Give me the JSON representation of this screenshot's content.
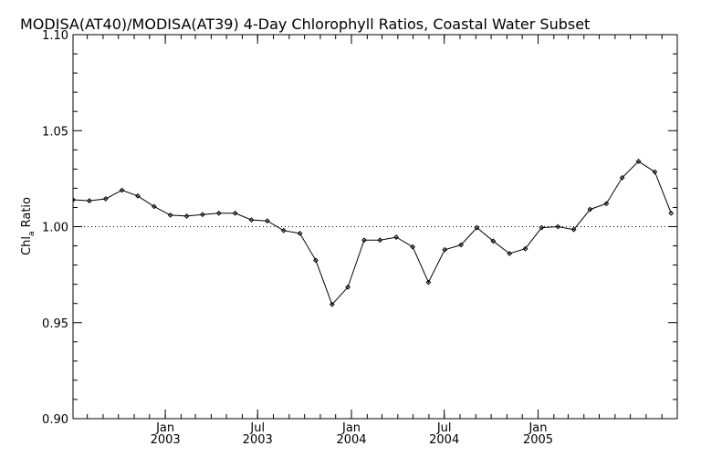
{
  "chart_data": {
    "type": "line",
    "title": "MODISA(AT40)/MODISA(AT39) 4-Day Chlorophyll Ratios, Coastal Water Subset",
    "ylabel": "Chl",
    "ylabel_subscript": "a",
    "ylabel_suffix": " Ratio",
    "xlabel": "",
    "ylim": [
      0.9,
      1.1
    ],
    "xlim": [
      "2002-07-04",
      "2005-10-01"
    ],
    "reference_line": {
      "y": 1.0,
      "style": "dotted"
    },
    "yticks": [
      {
        "value": 0.9,
        "label": "0.90"
      },
      {
        "value": 0.95,
        "label": "0.95"
      },
      {
        "value": 1.0,
        "label": "1.00"
      },
      {
        "value": 1.05,
        "label": "1.05"
      },
      {
        "value": 1.1,
        "label": "1.10"
      }
    ],
    "xticks": [
      {
        "date": "2003-01-01",
        "month": "Jan",
        "year": "2003"
      },
      {
        "date": "2003-07-01",
        "month": "Jul",
        "year": "2003"
      },
      {
        "date": "2004-01-01",
        "month": "Jan",
        "year": "2004"
      },
      {
        "date": "2004-07-01",
        "month": "Jul",
        "year": "2004"
      },
      {
        "date": "2005-01-01",
        "month": "Jan",
        "year": "2005"
      }
    ],
    "series": [
      {
        "x": [
          "2002-07-04",
          "2002-08-05",
          "2002-09-06",
          "2002-10-08",
          "2002-11-08",
          "2002-12-10",
          "2003-01-11",
          "2003-02-12",
          "2003-03-15",
          "2003-04-16",
          "2003-05-18",
          "2003-06-19",
          "2003-07-20",
          "2003-08-21",
          "2003-09-22",
          "2003-10-23",
          "2003-11-24",
          "2003-12-25",
          "2004-01-26",
          "2004-02-26",
          "2004-03-29",
          "2004-04-30",
          "2004-05-31",
          "2004-07-02",
          "2004-08-03",
          "2004-09-03",
          "2004-10-05",
          "2004-11-06",
          "2004-12-07",
          "2005-01-08",
          "2005-02-09",
          "2005-03-12",
          "2005-04-13",
          "2005-05-15",
          "2005-06-15",
          "2005-07-17",
          "2005-08-18",
          "2005-09-19"
        ],
        "values": [
          1.014,
          1.0135,
          1.0145,
          1.019,
          1.016,
          1.0105,
          1.006,
          1.0055,
          1.0063,
          1.007,
          1.007,
          1.0035,
          1.003,
          0.998,
          0.9965,
          0.9825,
          0.9595,
          0.9685,
          0.993,
          0.993,
          0.9945,
          0.9895,
          0.971,
          0.988,
          0.9905,
          0.9995,
          0.9925,
          0.986,
          0.9885,
          0.9995,
          1.0,
          0.9985,
          1.009,
          1.012,
          1.0255,
          1.034,
          1.0285,
          1.007
        ]
      }
    ]
  }
}
